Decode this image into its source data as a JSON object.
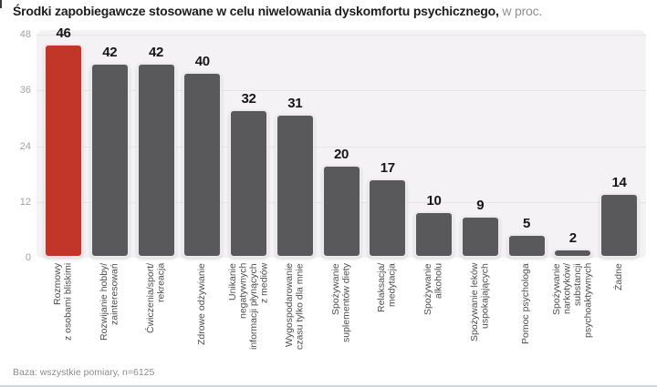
{
  "title": {
    "main": "Środki zapobiegawcze stosowane w celu niwelowania dyskomfortu psychicznego,",
    "suffix": " w proc."
  },
  "footer": {
    "base_note": "Baza: wszystkie pomiary, n=6125"
  },
  "colors": {
    "highlight_bar": "#c23529",
    "default_bar": "#59595b",
    "plot_background": "#f4f2f4",
    "gridline": "#e7e4e7",
    "bottom_rule": "#ccd6dd"
  },
  "chart_data": {
    "type": "bar",
    "title": "Środki zapobiegawcze stosowane w celu niwelowania dyskomfortu psychicznego",
    "unit": "w proc.",
    "xlabel": "",
    "ylabel": "",
    "ylim": [
      0,
      48
    ],
    "yticks": [
      0,
      12,
      24,
      36,
      48
    ],
    "grid": true,
    "legend": "none",
    "highlight_index": 0,
    "categories": [
      "Rozmowy z osobami bliskimi",
      "Rozwijanie hobby/ zainteresowań",
      "Ćwiczenia/sport/ rekreacja",
      "Zdrowe odżywianie",
      "Unikanie negatywnych informacji płynących z mediów",
      "Wygospodarowanie czasu tylko dla mnie",
      "Spożywanie suplementów diety",
      "Relaksacja/ medytacja",
      "Spożywanie alkoholu",
      "Spożywanie leków uspokajających",
      "Pomoc psychologa",
      "Spożywanie narkotyków/ substancji psychoaktywnych",
      "Żadne"
    ],
    "category_lines": [
      [
        "Rozmowy",
        "z osobami bliskimi"
      ],
      [
        "Rozwijanie hobby/",
        "zainteresowań"
      ],
      [
        "Ćwiczenia/sport/",
        "rekreacja"
      ],
      [
        "Zdrowe odżywianie"
      ],
      [
        "Unikanie",
        "negatywnych",
        "informacji płynących",
        "z mediów"
      ],
      [
        "Wygospodarowanie",
        "czasu tylko dla mnie"
      ],
      [
        "Spożywanie",
        "suplementów diety"
      ],
      [
        "Relaksacja/",
        "medytacja"
      ],
      [
        "Spożywanie",
        "alkoholu"
      ],
      [
        "Spożywanie leków",
        "uspokajających"
      ],
      [
        "Pomoc psychologa"
      ],
      [
        "Spożywanie",
        "narkotyków/",
        "substancji",
        "psychoaktywnych"
      ],
      [
        "Żadne"
      ]
    ],
    "values": [
      46,
      42,
      42,
      40,
      32,
      31,
      20,
      17,
      10,
      9,
      5,
      2,
      14
    ]
  }
}
